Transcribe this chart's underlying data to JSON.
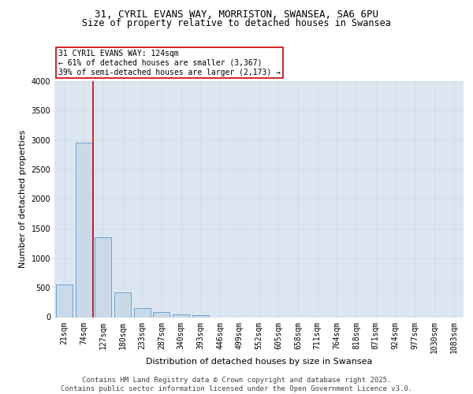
{
  "title_line1": "31, CYRIL EVANS WAY, MORRISTON, SWANSEA, SA6 6PU",
  "title_line2": "Size of property relative to detached houses in Swansea",
  "xlabel": "Distribution of detached houses by size in Swansea",
  "ylabel": "Number of detached properties",
  "categories": [
    "21sqm",
    "74sqm",
    "127sqm",
    "180sqm",
    "233sqm",
    "287sqm",
    "340sqm",
    "393sqm",
    "446sqm",
    "499sqm",
    "552sqm",
    "605sqm",
    "658sqm",
    "711sqm",
    "764sqm",
    "818sqm",
    "871sqm",
    "924sqm",
    "977sqm",
    "1030sqm",
    "1083sqm"
  ],
  "values": [
    560,
    2960,
    1360,
    420,
    155,
    90,
    50,
    40,
    0,
    0,
    0,
    0,
    0,
    0,
    0,
    0,
    0,
    0,
    0,
    0,
    0
  ],
  "bar_color": "#c9d9e8",
  "bar_edge_color": "#5b9bd5",
  "vline_color": "#cc0000",
  "annotation_text": "31 CYRIL EVANS WAY: 124sqm\n← 61% of detached houses are smaller (3,367)\n39% of semi-detached houses are larger (2,173) →",
  "annotation_box_edgecolor": "#cc0000",
  "annotation_box_facecolor": "white",
  "ylim": [
    0,
    4000
  ],
  "yticks": [
    0,
    500,
    1000,
    1500,
    2000,
    2500,
    3000,
    3500,
    4000
  ],
  "grid_color": "#d0d8e8",
  "background_color": "#dce6f0",
  "footer_text": "Contains HM Land Registry data © Crown copyright and database right 2025.\nContains public sector information licensed under the Open Government Licence v3.0.",
  "title_fontsize": 9,
  "subtitle_fontsize": 8.5,
  "axis_label_fontsize": 8,
  "tick_fontsize": 7,
  "annotation_fontsize": 7,
  "footer_fontsize": 6.5
}
